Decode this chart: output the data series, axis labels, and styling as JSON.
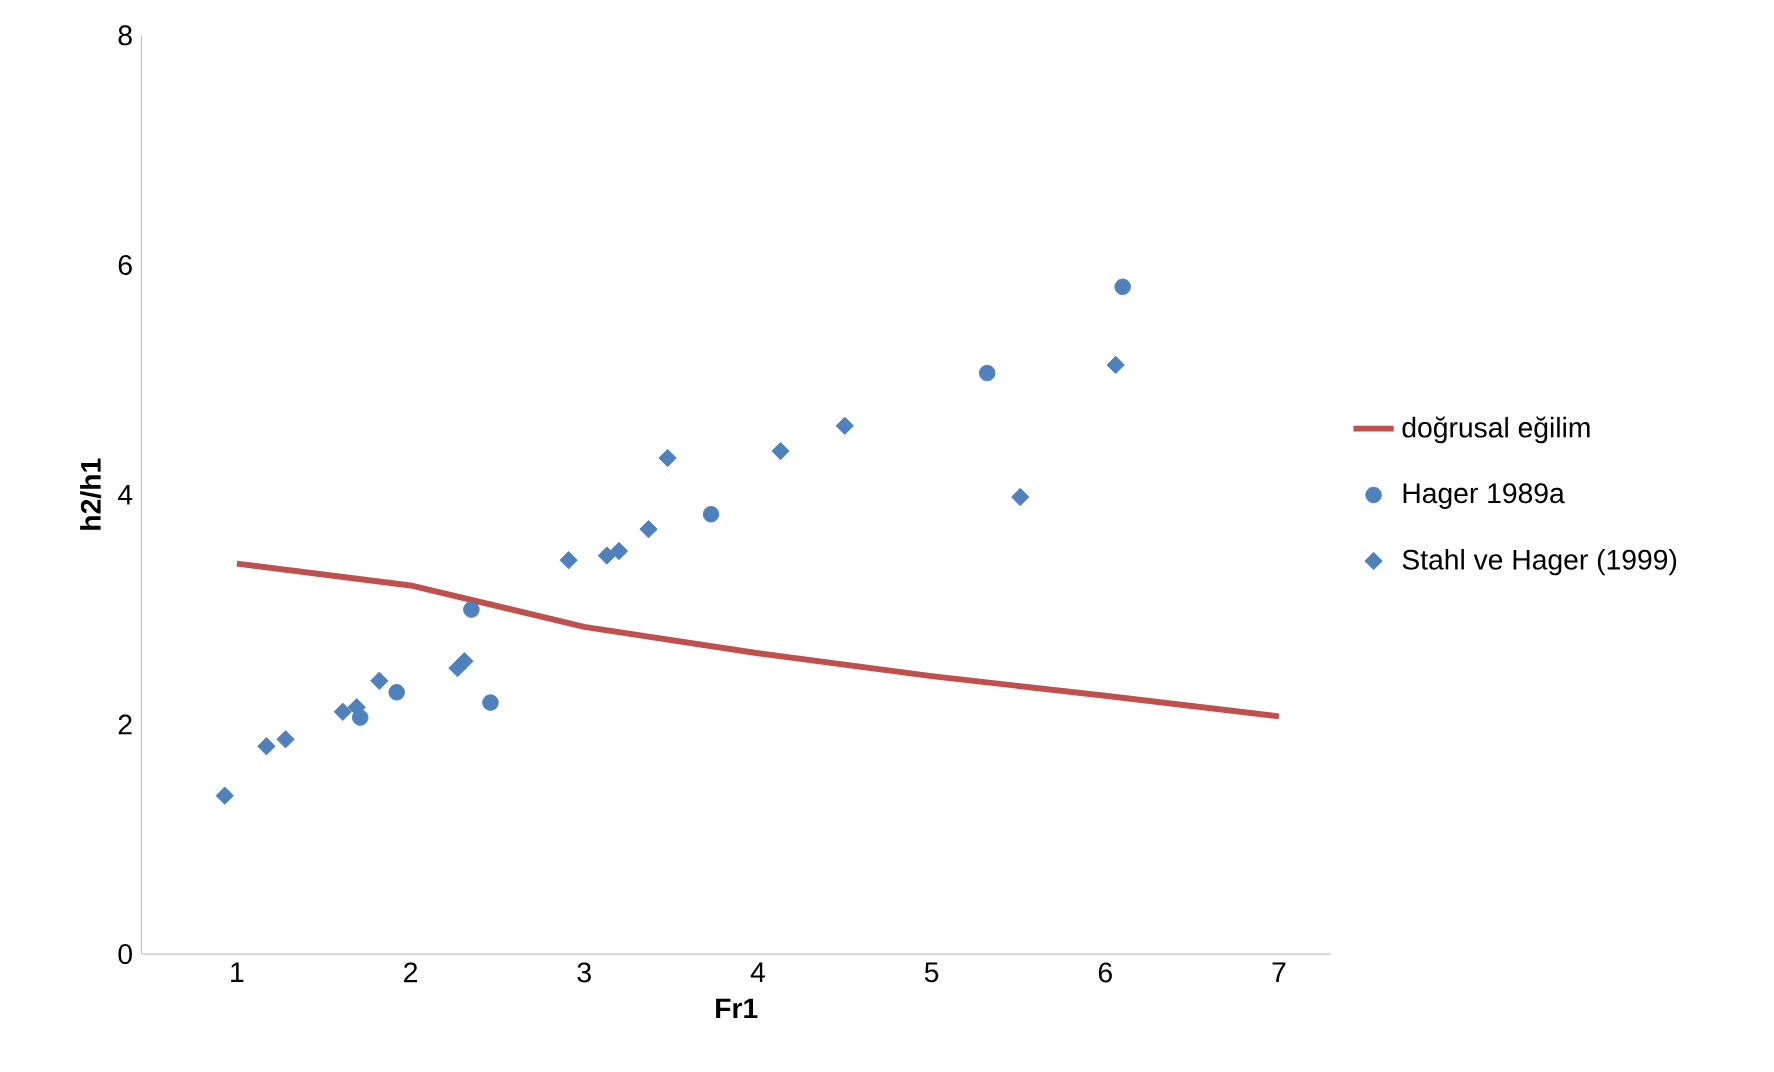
{
  "chart_data": {
    "type": "scatter",
    "xlabel": "Fr1",
    "ylabel": "h2/h1",
    "xlim": [
      0.45,
      7.3
    ],
    "ylim": [
      0,
      8
    ],
    "xticks": [
      1,
      2,
      3,
      4,
      5,
      6,
      7
    ],
    "yticks": [
      0,
      2,
      4,
      6,
      8
    ],
    "legend": "right",
    "series": [
      {
        "name": "doğrusal eğilim",
        "type": "line",
        "color": "#c0504d",
        "marker": "none",
        "x": [
          1,
          2,
          3,
          4,
          5,
          6,
          7
        ],
        "values": [
          3.4,
          3.21,
          2.85,
          2.62,
          2.42,
          2.25,
          2.07
        ]
      },
      {
        "name": "Hager 1989a",
        "color": "#4f81bd",
        "marker": "circle",
        "x": [
          1.71,
          1.92,
          2.35,
          2.46,
          3.73,
          5.32,
          6.1
        ],
        "values": [
          2.06,
          2.28,
          3.0,
          2.19,
          3.83,
          5.06,
          5.81
        ]
      },
      {
        "name": "Stahl ve Hager (1999)",
        "color": "#4f81bd",
        "marker": "diamond",
        "x": [
          0.93,
          1.17,
          1.28,
          1.61,
          1.69,
          1.82,
          2.27,
          2.31,
          2.91,
          3.13,
          3.2,
          3.37,
          3.48,
          4.13,
          4.5,
          5.51,
          6.06
        ],
        "values": [
          1.38,
          1.81,
          1.87,
          2.11,
          2.15,
          2.38,
          2.49,
          2.55,
          3.43,
          3.47,
          3.51,
          3.7,
          4.32,
          4.38,
          4.6,
          3.98,
          5.13
        ]
      }
    ]
  }
}
